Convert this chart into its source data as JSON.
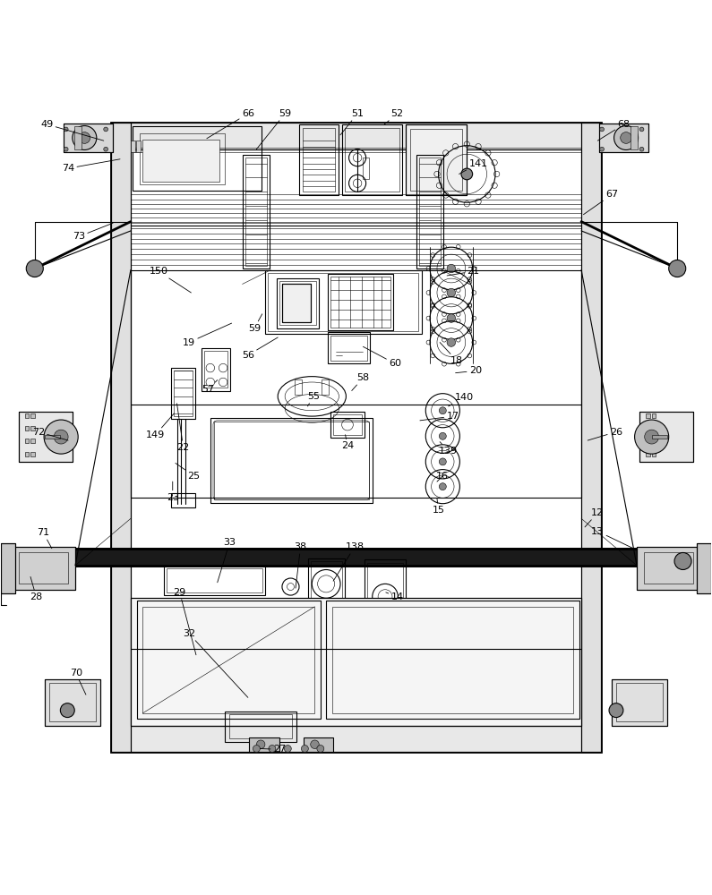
{
  "bg_color": "#ffffff",
  "line_color": "#000000",
  "fig_width": 7.95,
  "fig_height": 10.0,
  "lw_main": 0.8,
  "lw_thick": 2.0,
  "lw_thin": 0.4,
  "font_size": 8.0,
  "labels": {
    "49": [
      0.065,
      0.955,
      0.145,
      0.932
    ],
    "74": [
      0.095,
      0.893,
      0.168,
      0.906
    ],
    "66": [
      0.348,
      0.97,
      0.29,
      0.935
    ],
    "59a": [
      0.4,
      0.97,
      0.36,
      0.92
    ],
    "51": [
      0.502,
      0.97,
      0.478,
      0.94
    ],
    "52": [
      0.558,
      0.97,
      0.54,
      0.955
    ],
    "68": [
      0.877,
      0.955,
      0.84,
      0.932
    ],
    "141": [
      0.672,
      0.9,
      0.645,
      0.885
    ],
    "67": [
      0.86,
      0.856,
      0.82,
      0.828
    ],
    "73": [
      0.11,
      0.797,
      0.158,
      0.816
    ],
    "150": [
      0.222,
      0.748,
      0.268,
      0.718
    ],
    "21": [
      0.665,
      0.748,
      0.628,
      0.742
    ],
    "59b": [
      0.357,
      0.668,
      0.368,
      0.688
    ],
    "19": [
      0.265,
      0.648,
      0.325,
      0.675
    ],
    "56": [
      0.348,
      0.63,
      0.39,
      0.655
    ],
    "60": [
      0.555,
      0.618,
      0.51,
      0.642
    ],
    "58": [
      0.51,
      0.598,
      0.494,
      0.58
    ],
    "18": [
      0.642,
      0.622,
      0.618,
      0.648
    ],
    "20": [
      0.668,
      0.608,
      0.64,
      0.605
    ],
    "57": [
      0.292,
      0.582,
      0.305,
      0.595
    ],
    "55": [
      0.44,
      0.572,
      0.432,
      0.558
    ],
    "140": [
      0.652,
      0.57,
      0.63,
      0.558
    ],
    "17": [
      0.636,
      0.544,
      0.59,
      0.538
    ],
    "72": [
      0.053,
      0.522,
      0.095,
      0.51
    ],
    "26": [
      0.866,
      0.522,
      0.826,
      0.51
    ],
    "149": [
      0.218,
      0.518,
      0.244,
      0.548
    ],
    "22": [
      0.257,
      0.5,
      0.248,
      0.562
    ],
    "24": [
      0.488,
      0.502,
      0.485,
      0.518
    ],
    "139": [
      0.63,
      0.495,
      0.618,
      0.508
    ],
    "25": [
      0.272,
      0.46,
      0.246,
      0.478
    ],
    "16": [
      0.622,
      0.46,
      0.614,
      0.452
    ],
    "23": [
      0.242,
      0.43,
      0.242,
      0.452
    ],
    "15": [
      0.616,
      0.412,
      0.614,
      0.428
    ],
    "71": [
      0.06,
      0.38,
      0.072,
      0.358
    ],
    "12": [
      0.84,
      0.408,
      0.822,
      0.388
    ],
    "33": [
      0.322,
      0.366,
      0.305,
      0.31
    ],
    "38": [
      0.422,
      0.36,
      0.415,
      0.302
    ],
    "138": [
      0.498,
      0.36,
      0.468,
      0.312
    ],
    "13": [
      0.84,
      0.382,
      0.89,
      0.358
    ],
    "29": [
      0.252,
      0.296,
      0.275,
      0.208
    ],
    "14": [
      0.558,
      0.29,
      0.542,
      0.296
    ],
    "28": [
      0.05,
      0.29,
      0.042,
      0.318
    ],
    "32": [
      0.265,
      0.238,
      0.348,
      0.148
    ],
    "70": [
      0.106,
      0.182,
      0.12,
      0.152
    ],
    "27": [
      0.392,
      0.075,
      0.365,
      0.076
    ]
  }
}
